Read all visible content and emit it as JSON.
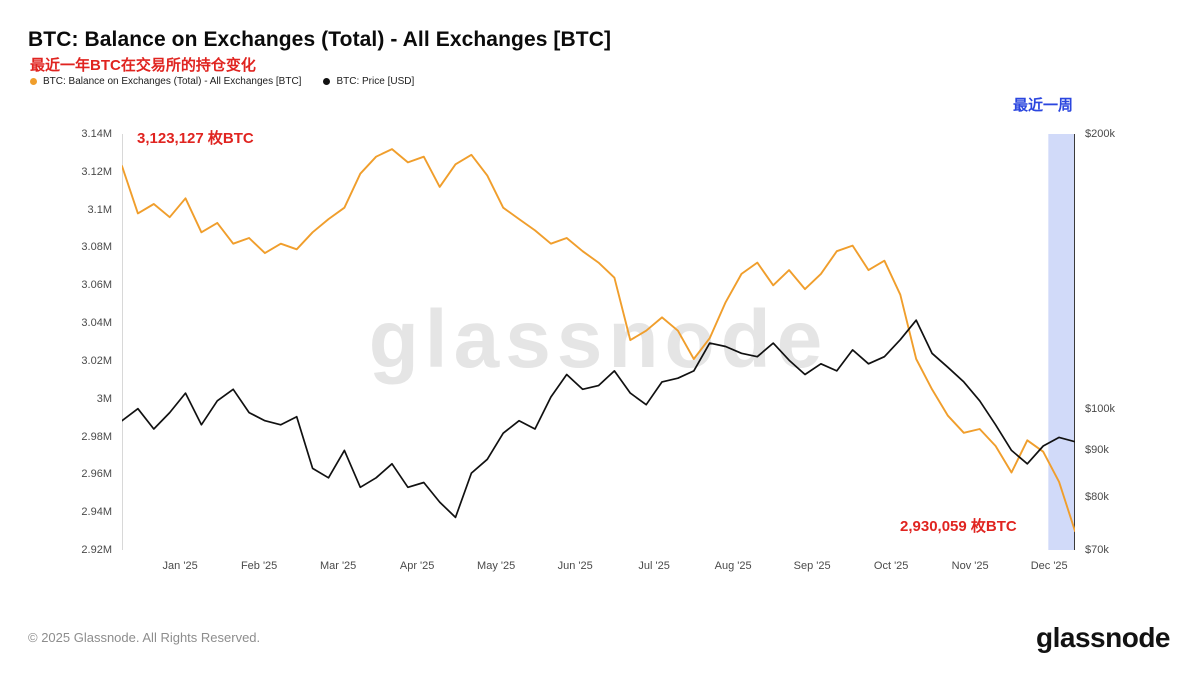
{
  "header": {
    "title": "BTC: Balance on Exchanges (Total) - All Exchanges [BTC]",
    "subtitle": "最近一年BTC在交易所的持仓变化",
    "legend": [
      {
        "label": "BTC: Balance on Exchanges (Total) - All Exchanges [BTC]",
        "color": "#f09e2c"
      },
      {
        "label": "BTC: Price [USD]",
        "color": "#111111"
      }
    ]
  },
  "annotations": {
    "highlight_label": "最近一周",
    "start_balance": "3,123,127 枚BTC",
    "end_balance": "2,930,059 枚BTC"
  },
  "watermark": "glassnode",
  "footer": {
    "copyright": "© 2025 Glassnode. All Rights Reserved.",
    "logo": "glassnode"
  },
  "chart_data": {
    "type": "line",
    "title": "BTC: Balance on Exchanges (Total) - All Exchanges [BTC]",
    "x_tick_labels": [
      "Jan '25",
      "Feb '25",
      "Mar '25",
      "Apr '25",
      "May '25",
      "Jun '25",
      "Jul '25",
      "Aug '25",
      "Sep '25",
      "Oct '25",
      "Nov '25",
      "Dec '25"
    ],
    "left_axis": {
      "ticks": [
        "3.14M",
        "3.12M",
        "3.1M",
        "3.08M",
        "3.06M",
        "3.04M",
        "3.02M",
        "3M",
        "2.98M",
        "2.96M",
        "2.94M",
        "2.92M"
      ],
      "min": 2.92,
      "max": 3.14,
      "unit": "M BTC",
      "scale": "linear"
    },
    "right_axis": {
      "ticks": [
        {
          "label": "$200k",
          "value": 200
        },
        {
          "label": "$100k",
          "value": 100
        },
        {
          "label": "$90k",
          "value": 90
        },
        {
          "label": "$80k",
          "value": 80
        },
        {
          "label": "$70k",
          "value": 70
        }
      ],
      "min_k": 70,
      "max_k": 200,
      "unit": "USD",
      "scale": "log"
    },
    "series": [
      {
        "name": "BTC: Balance on Exchanges (Total) - All Exchanges [BTC]",
        "color": "#f09e2c",
        "axis": "left",
        "unit": "M BTC",
        "values": [
          3.123,
          3.098,
          3.103,
          3.096,
          3.106,
          3.088,
          3.093,
          3.082,
          3.085,
          3.077,
          3.082,
          3.079,
          3.088,
          3.095,
          3.101,
          3.119,
          3.128,
          3.132,
          3.125,
          3.128,
          3.112,
          3.124,
          3.129,
          3.118,
          3.101,
          3.095,
          3.089,
          3.082,
          3.085,
          3.078,
          3.072,
          3.064,
          3.031,
          3.036,
          3.043,
          3.036,
          3.021,
          3.032,
          3.051,
          3.066,
          3.072,
          3.06,
          3.068,
          3.058,
          3.066,
          3.078,
          3.081,
          3.068,
          3.073,
          3.055,
          3.021,
          3.005,
          2.991,
          2.982,
          2.984,
          2.975,
          2.961,
          2.978,
          2.972,
          2.956,
          2.93
        ]
      },
      {
        "name": "BTC: Price [USD]",
        "color": "#111111",
        "axis": "right",
        "unit": "USD thousands",
        "values": [
          97,
          100,
          95,
          99,
          104,
          96,
          102,
          105,
          99,
          97,
          96,
          98,
          86,
          84,
          90,
          82,
          84,
          87,
          82,
          83,
          79,
          76,
          85,
          88,
          94,
          97,
          95,
          103,
          109,
          105,
          106,
          110,
          104,
          101,
          107,
          108,
          110,
          118,
          117,
          115,
          114,
          118,
          113,
          109,
          112,
          110,
          116,
          112,
          114,
          119,
          125,
          115,
          111,
          107,
          102,
          96,
          90,
          87,
          91,
          93,
          92
        ]
      }
    ],
    "highlight_region": {
      "label": "最近一周",
      "x_fraction_start": 0.972,
      "x_fraction_end": 1.0,
      "color": "#c9d3f8"
    },
    "legend_position": "top-left",
    "grid": false
  }
}
